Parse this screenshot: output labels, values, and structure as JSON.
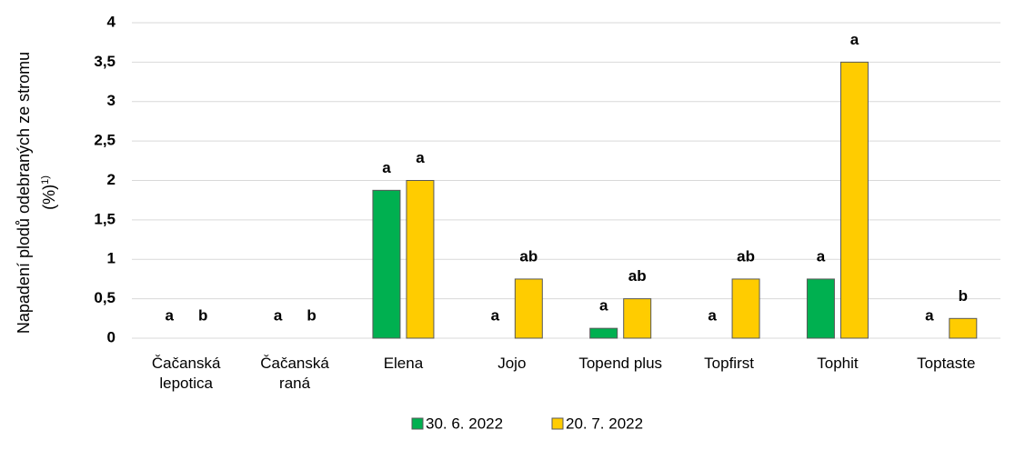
{
  "chart_data": {
    "type": "bar",
    "ylabel": "Napadení plodů odebraných ze stromu (%)",
    "ylabel_note": "1)",
    "categories": [
      "Čačanská lepotica",
      "Čačanská raná",
      "Elena",
      "Jojo",
      "Topend plus",
      "Topfirst",
      "Tophit",
      "Toptaste"
    ],
    "series": [
      {
        "name": "30. 6. 2022",
        "color": "#00b050",
        "values": [
          0,
          0,
          1.875,
          0,
          0.125,
          0,
          0.75,
          0
        ],
        "letters": [
          "a",
          "a",
          "a",
          "a",
          "a",
          "a",
          "a",
          "a"
        ]
      },
      {
        "name": "20. 7. 2022",
        "color": "#ffcc00",
        "values": [
          0,
          0,
          2,
          0.75,
          0.5,
          0.75,
          3.5,
          0.25
        ],
        "letters": [
          "b",
          "b",
          "a",
          "ab",
          "ab",
          "ab",
          "a",
          "b"
        ]
      }
    ],
    "ylim": [
      0,
      4
    ],
    "yticks": [
      0,
      {
        "value": 0.5,
        "label": "0,5"
      },
      1,
      {
        "value": 1.5,
        "label": "1,5"
      },
      2,
      {
        "value": 2.5,
        "label": "2,5"
      },
      3,
      {
        "value": 3.5,
        "label": "3,5"
      },
      4
    ],
    "grid": true,
    "legend": "bottom"
  }
}
